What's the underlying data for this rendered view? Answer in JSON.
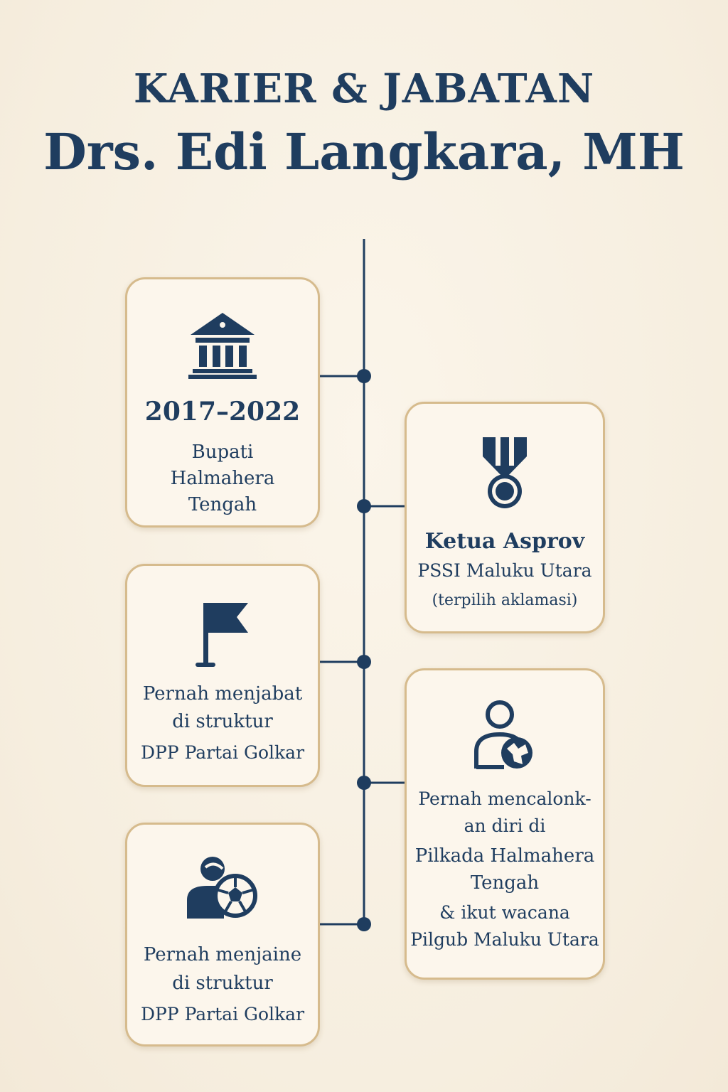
{
  "title": {
    "line1": "KARIER & JABATAN",
    "line2": "Drs. Edi Langkara, MH"
  },
  "colors": {
    "background": "#f7efe3",
    "navy": "#1f3d5f",
    "card_border": "#d6bb8d",
    "card_fill": "#fcf6ec"
  },
  "cards": [
    {
      "icon": "government-building-icon",
      "year": "2017–2022",
      "lines": [
        "Bupati",
        "Halmahera",
        "Tengah"
      ]
    },
    {
      "icon": "medal-icon",
      "heading": "Ketua Asprov",
      "lines": [
        "PSSI Maluku Utara",
        "(terpilih aklamasi)"
      ]
    },
    {
      "icon": "flag-icon",
      "lines": [
        "Pernah menjabat",
        "di struktur",
        "DPP Partai Golkar"
      ]
    },
    {
      "icon": "person-globe-icon",
      "lines": [
        "Pernah mencalonk-",
        "an diri di",
        "Pilkada Halmahera",
        "Tengah",
        "& ikut wacana",
        "Pilgub Maluku Utara"
      ]
    },
    {
      "icon": "person-football-icon",
      "lines": [
        "Pernah menjaine",
        "di struktur",
        "DPP Partai Golkar"
      ]
    }
  ]
}
